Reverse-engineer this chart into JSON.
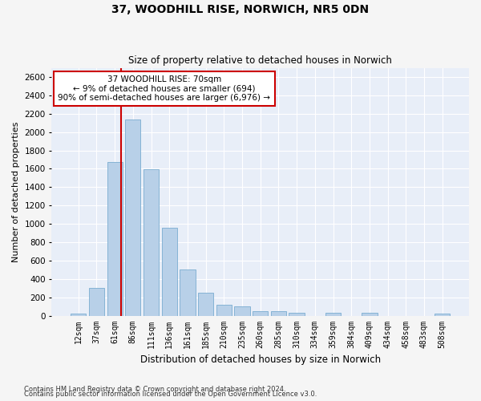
{
  "title1": "37, WOODHILL RISE, NORWICH, NR5 0DN",
  "title2": "Size of property relative to detached houses in Norwich",
  "xlabel": "Distribution of detached houses by size in Norwich",
  "ylabel": "Number of detached properties",
  "categories": [
    "12sqm",
    "37sqm",
    "61sqm",
    "86sqm",
    "111sqm",
    "136sqm",
    "161sqm",
    "185sqm",
    "210sqm",
    "235sqm",
    "260sqm",
    "285sqm",
    "310sqm",
    "334sqm",
    "359sqm",
    "384sqm",
    "409sqm",
    "434sqm",
    "458sqm",
    "483sqm",
    "508sqm"
  ],
  "values": [
    25,
    300,
    1670,
    2140,
    1595,
    960,
    505,
    250,
    120,
    100,
    50,
    50,
    35,
    0,
    35,
    0,
    35,
    0,
    0,
    0,
    25
  ],
  "bar_color": "#b8d0e8",
  "bar_edge_color": "#7aacd0",
  "annotation_text": "37 WOODHILL RISE: 70sqm\n← 9% of detached houses are smaller (694)\n90% of semi-detached houses are larger (6,976) →",
  "annotation_box_color": "#ffffff",
  "annotation_box_edge": "#cc0000",
  "vline_color": "#cc0000",
  "background_color": "#e8eef8",
  "grid_color": "#ffffff",
  "fig_background": "#f5f5f5",
  "footer1": "Contains HM Land Registry data © Crown copyright and database right 2024.",
  "footer2": "Contains public sector information licensed under the Open Government Licence v3.0.",
  "ylim": [
    0,
    2700
  ],
  "yticks": [
    0,
    200,
    400,
    600,
    800,
    1000,
    1200,
    1400,
    1600,
    1800,
    2000,
    2200,
    2400,
    2600
  ]
}
